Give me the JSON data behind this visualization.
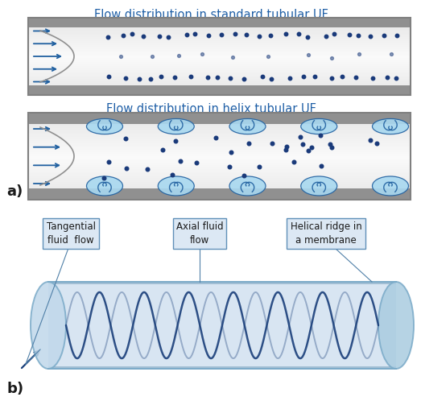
{
  "fig_width": 5.23,
  "fig_height": 5.03,
  "bg_color": "#ffffff",
  "title_a1": "Flow distribution in standard tubular UF",
  "title_a2": "Flow distribution in helix tubular UF",
  "label_a": "a)",
  "label_b": "b)",
  "title_color": "#1f5fa6",
  "label_color": "#1a1a1a",
  "arrow_color": "#2060a0",
  "dot_color": "#1a3a7a",
  "vortex_color": "#2060a0",
  "tube3d_color": "#b8d0e8",
  "tube3d_border": "#6090b0",
  "helix_color": "#2050a0"
}
